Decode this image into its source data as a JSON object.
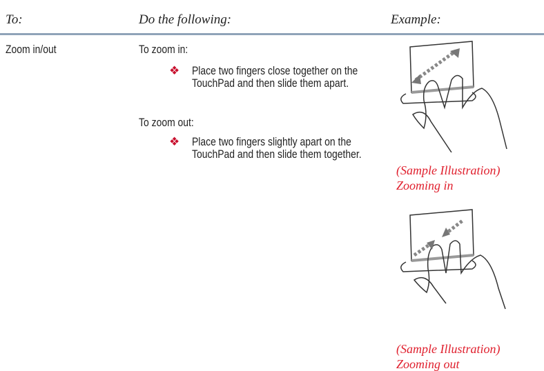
{
  "header": {
    "columns": [
      "To:",
      "Do the following:",
      "Example:"
    ]
  },
  "rows": [
    {
      "action": "Zoom in/out",
      "steps": [
        {
          "label": "To zoom in:",
          "bullet": "Place two fingers close together on the TouchPad and then slide them apart."
        },
        {
          "label": "To zoom out:",
          "bullet": "Place two fingers slightly apart on the TouchPad and then slide them together."
        }
      ],
      "examples": [
        {
          "caption": "(Sample Illustration)",
          "label": "Zooming in"
        },
        {
          "caption": "(Sample Illustration)",
          "label": "Zooming out"
        }
      ]
    }
  ]
}
